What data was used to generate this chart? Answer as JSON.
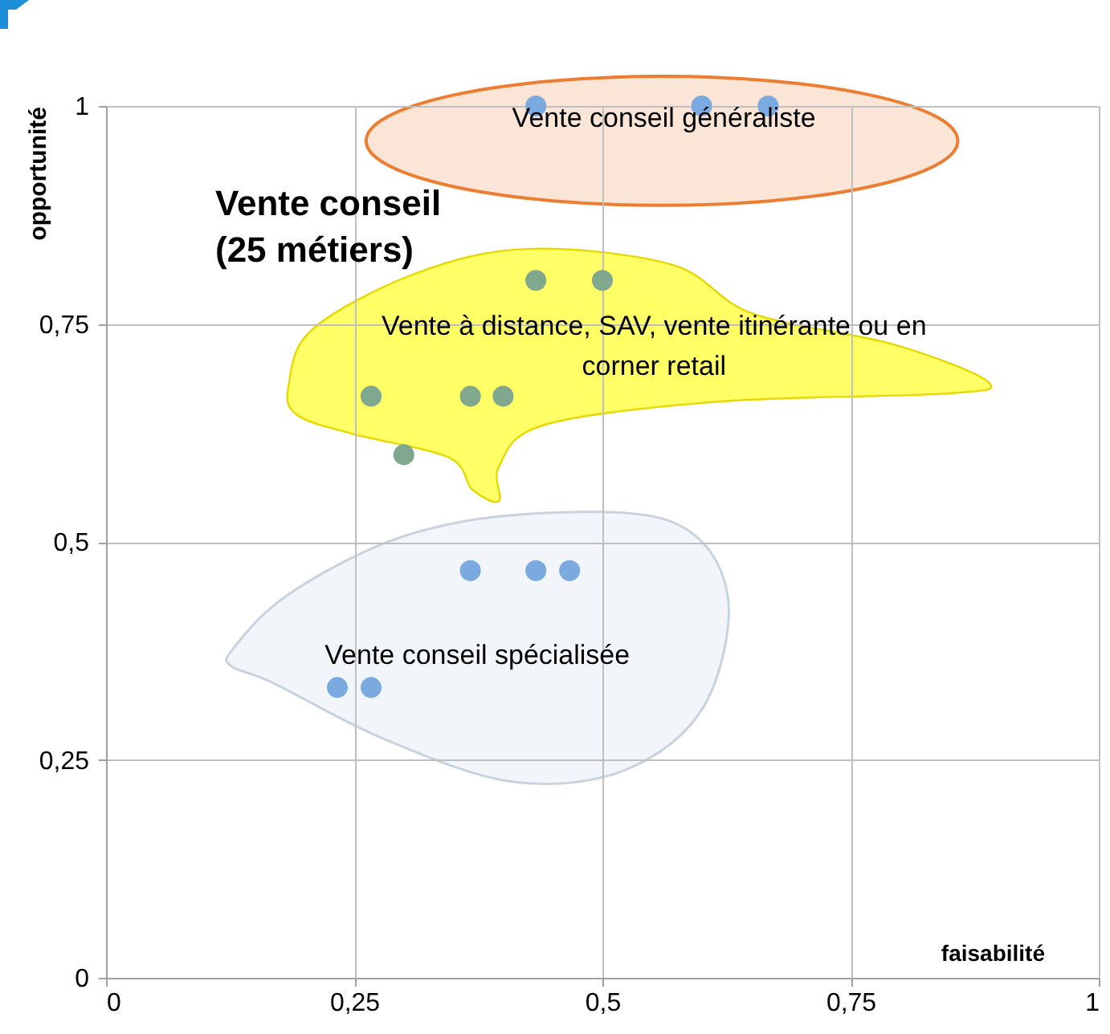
{
  "chart_data": {
    "type": "scatter",
    "title": "Vente conseil\n(25 métiers)",
    "xlabel": "faisabilité",
    "ylabel": "opportunité",
    "series": [
      {
        "color": "#7aaadf",
        "x": [
          0.433,
          0.6,
          0.667
        ],
        "values": [
          1,
          1,
          1
        ]
      },
      {
        "color": "#7fa88f",
        "x": [
          0.433,
          0.5,
          0.267,
          0.367,
          0.4,
          0.3
        ],
        "values": [
          0.8,
          0.8,
          0.667,
          0.667,
          0.667,
          0.6
        ]
      },
      {
        "color": "#7aaadf",
        "x": [
          0.367,
          0.433,
          0.467,
          0.233,
          0.267
        ],
        "values": [
          0.467,
          0.467,
          0.467,
          0.333,
          0.333
        ]
      }
    ],
    "annotations": [
      "Vente conseil généraliste",
      "Vente à distance, SAV, vente itinérante ou en\ncorner retail",
      "Vente conseil spécialisée"
    ],
    "xlim": [
      0,
      1
    ],
    "ylim": [
      0,
      1
    ],
    "xticks": [
      0,
      {
        "value": 0.25,
        "label": "0,25"
      },
      {
        "value": 0.5,
        "label": "0,5"
      },
      {
        "value": 0.75,
        "label": "0,75"
      },
      1
    ],
    "yticks": [
      0,
      {
        "value": 0.25,
        "label": "0,25"
      },
      {
        "value": 0.5,
        "label": "0,5"
      },
      {
        "value": 0.75,
        "label": "0,75"
      },
      1
    ],
    "grid": true,
    "marker": "circle",
    "legend": false
  }
}
